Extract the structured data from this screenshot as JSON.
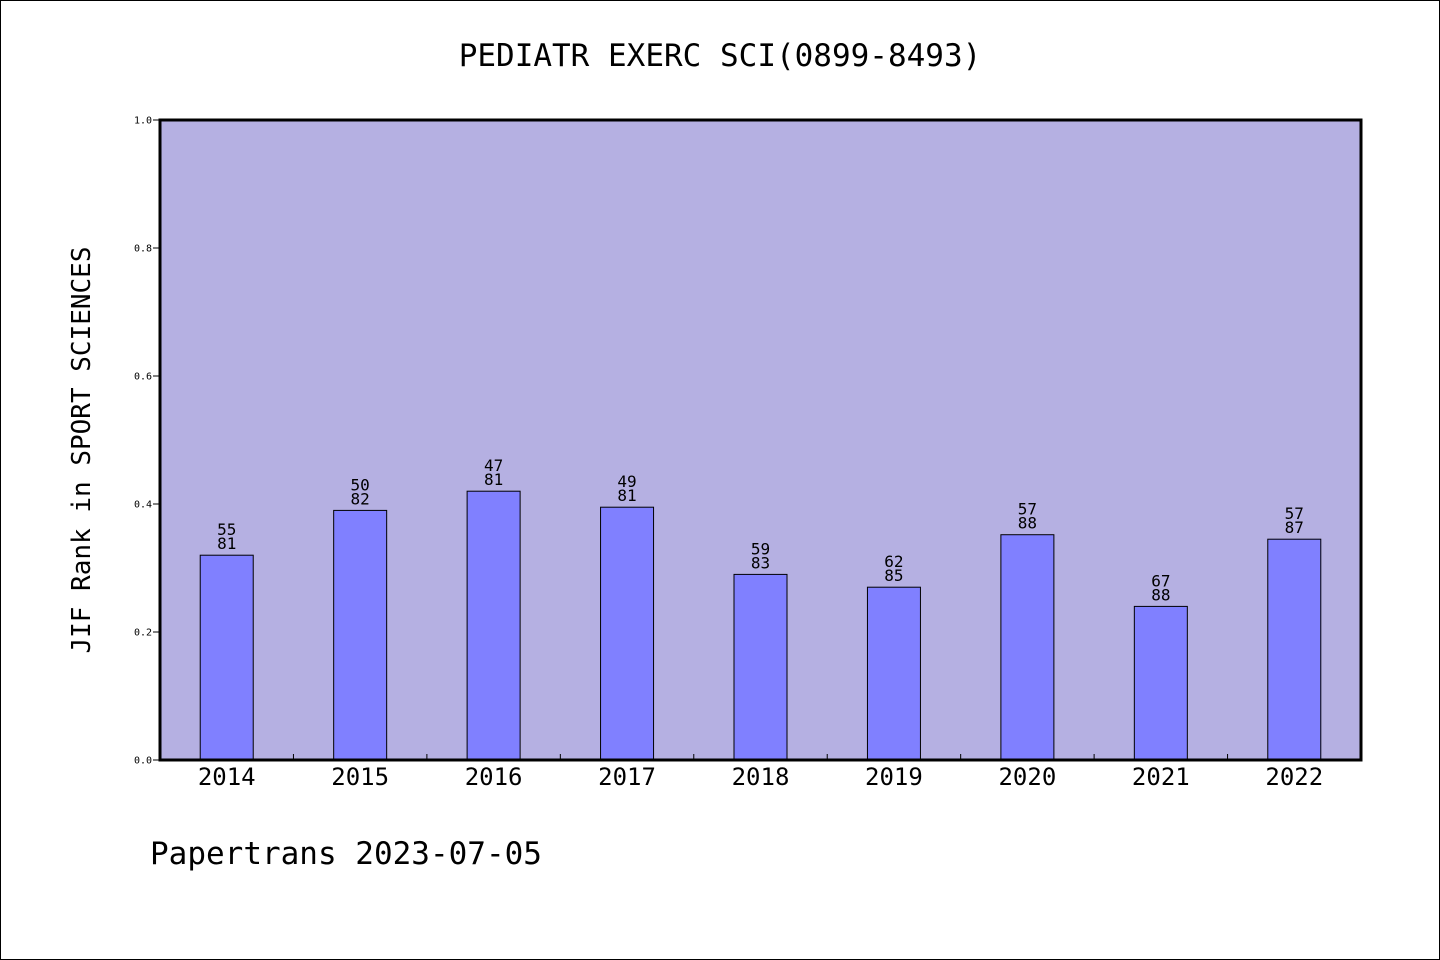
{
  "chart_data": {
    "type": "bar",
    "title": "PEDIATR EXERC SCI(0899-8493)",
    "ylabel": "JIF Rank in SPORT SCIENCES",
    "xlabel": "",
    "ylim": [
      0,
      1
    ],
    "yticks": [
      "0.0",
      "0.2",
      "0.4",
      "0.6",
      "0.8",
      "1.0"
    ],
    "categories": [
      "2014",
      "2015",
      "2016",
      "2017",
      "2018",
      "2019",
      "2020",
      "2021",
      "2022"
    ],
    "values": [
      0.32,
      0.39,
      0.42,
      0.395,
      0.29,
      0.27,
      0.352,
      0.24,
      0.345
    ],
    "labels_top": [
      "55",
      "50",
      "47",
      "49",
      "59",
      "62",
      "57",
      "67",
      "57"
    ],
    "labels_bottom": [
      "81",
      "82",
      "81",
      "81",
      "83",
      "85",
      "88",
      "88",
      "87"
    ],
    "grid": false,
    "colors": {
      "plot_background": "#b5b0e2",
      "bar_fill": "#8080ff",
      "bar_stroke": "#000000"
    }
  },
  "footer": "Papertrans 2023-07-05"
}
